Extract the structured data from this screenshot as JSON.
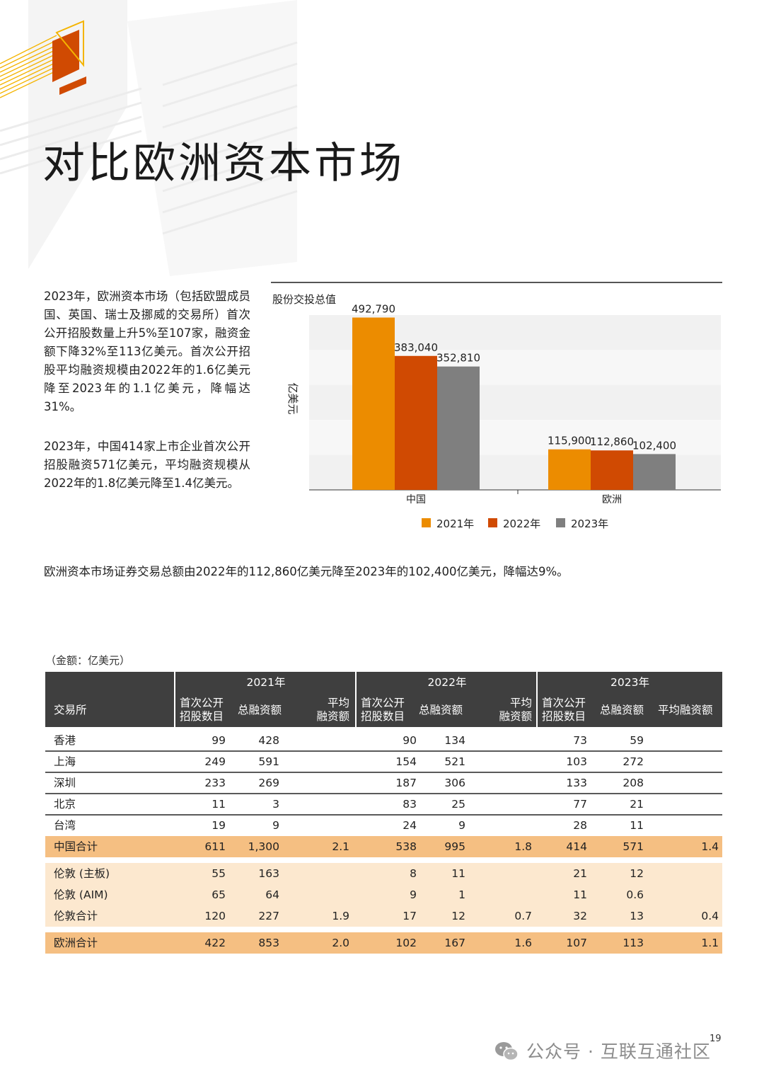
{
  "page": {
    "title": "对比欧洲资本市场",
    "paragraphs": [
      "2023年，欧洲资本市场（包括欧盟成员国、英国、瑞士及挪威的交易所）首次公开招股数量上升5%至107家，融资金额下降32%至113亿美元。首次公开招股平均融资规模由2022年的1.6亿美元降至2023年的1.1亿美元，降幅达31%。",
      "2023年，中国414家上市企业首次公开招股融资571亿美元，平均融资规模从2022年的1.8亿美元降至1.4亿美元。"
    ],
    "summary": "欧洲资本市场证券交易总额由2022年的112,860亿美元降至2023年的102,400亿美元，降幅达9%。",
    "unit_note": "（金额：亿美元）",
    "page_number": "19",
    "watermark": "公众号 · 互联互通社区"
  },
  "colors": {
    "y2021": "#ec8c00",
    "y2022": "#d04a02",
    "y2023": "#7f7f7f",
    "header": "#3f3f3f",
    "total_row": "#f5bf82",
    "light_row": "#fce8cf"
  },
  "chart_data": {
    "type": "bar",
    "title": "股份交投总值",
    "ylabel": "亿美元",
    "categories": [
      "中国",
      "欧洲"
    ],
    "series": [
      {
        "name": "2021年",
        "values": [
          492790,
          115900
        ],
        "labels": [
          "492,790",
          "115,900"
        ]
      },
      {
        "name": "2022年",
        "values": [
          383040,
          112860
        ],
        "labels": [
          "383,040",
          "112,860"
        ]
      },
      {
        "name": "2023年",
        "values": [
          352810,
          102400
        ],
        "labels": [
          "352,810",
          "102,400"
        ]
      }
    ],
    "ylim": [
      0,
      500000
    ],
    "grid": "banded",
    "legend": "bottom"
  },
  "table": {
    "first_col_header": "交易所",
    "years": [
      "2021年",
      "2022年",
      "2023年"
    ],
    "sub_headers": [
      [
        "首次公开",
        "招股数目"
      ],
      [
        "总融资额"
      ],
      [
        "平均",
        "融资额"
      ],
      [
        "首次公开",
        "招股数目"
      ],
      [
        "总融资额"
      ],
      [
        "平均",
        "融资额"
      ],
      [
        "首次公开",
        "招股数目"
      ],
      [
        "总融资额"
      ],
      [
        "平均融资额"
      ]
    ],
    "china_rows": [
      {
        "label": "香港",
        "values": [
          "99",
          "428",
          "",
          "90",
          "134",
          "",
          "73",
          "59",
          ""
        ]
      },
      {
        "label": "上海",
        "values": [
          "249",
          "591",
          "",
          "154",
          "521",
          "",
          "103",
          "272",
          ""
        ]
      },
      {
        "label": "深圳",
        "values": [
          "233",
          "269",
          "",
          "187",
          "306",
          "",
          "133",
          "208",
          ""
        ]
      },
      {
        "label": "北京",
        "values": [
          "11",
          "3",
          "",
          "83",
          "25",
          "",
          "77",
          "21",
          ""
        ]
      },
      {
        "label": "台湾",
        "values": [
          "19",
          "9",
          "",
          "24",
          "9",
          "",
          "28",
          "11",
          ""
        ]
      }
    ],
    "china_total": {
      "label": "中国合计",
      "values": [
        "611",
        "1,300",
        "2.1",
        "538",
        "995",
        "1.8",
        "414",
        "571",
        "1.4"
      ]
    },
    "london_rows": [
      {
        "label": "伦敦 (主板)",
        "values": [
          "55",
          "163",
          "",
          "8",
          "11",
          "",
          "21",
          "12",
          ""
        ]
      },
      {
        "label": "伦敦 (AIM)",
        "values": [
          "65",
          "64",
          "",
          "9",
          "1",
          "",
          "11",
          "0.6",
          ""
        ]
      }
    ],
    "london_total": {
      "label": "伦敦合计",
      "values": [
        "120",
        "227",
        "1.9",
        "17",
        "12",
        "0.7",
        "32",
        "13",
        "0.4"
      ]
    },
    "europe_total": {
      "label": "欧洲合计",
      "values": [
        "422",
        "853",
        "2.0",
        "102",
        "167",
        "1.6",
        "107",
        "113",
        "1.1"
      ]
    }
  }
}
